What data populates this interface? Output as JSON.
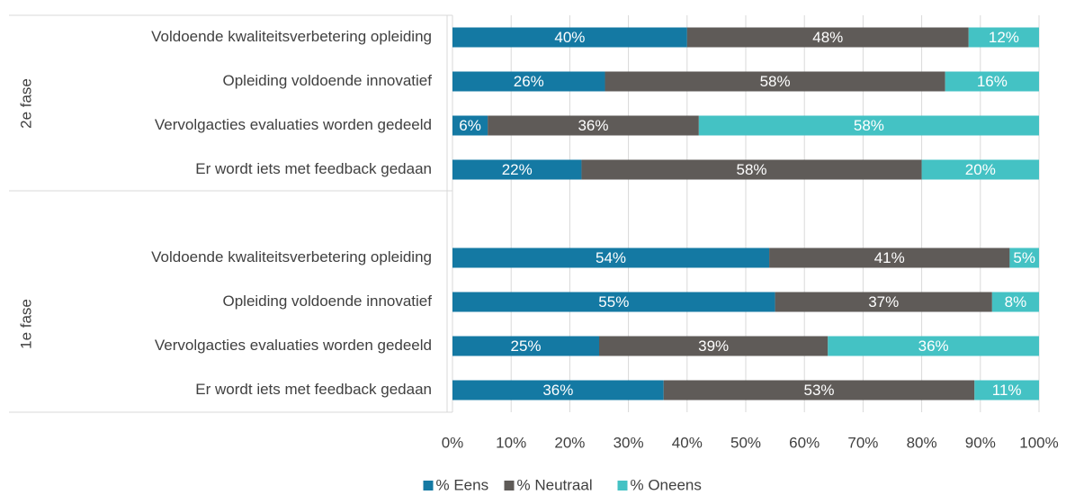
{
  "chart_data": {
    "type": "stacked_bar_horizontal",
    "groups": [
      {
        "name": "2e fase",
        "categories": [
          "Voldoende kwaliteitsverbetering opleiding",
          "Opleiding voldoende innovatief",
          "Vervolgacties evaluaties worden gedeeld",
          "Er wordt iets met feedback gedaan"
        ]
      },
      {
        "name": "1e fase",
        "categories": [
          "Voldoende kwaliteitsverbetering opleiding",
          "Opleiding voldoende innovatief",
          "Vervolgacties evaluaties worden gedeeld",
          "Er wordt iets met feedback gedaan"
        ]
      }
    ],
    "series": [
      {
        "name": "% Eens",
        "color": "#1479a3",
        "values": [
          40,
          26,
          6,
          22,
          54,
          55,
          25,
          36
        ],
        "value_labels": [
          "40%",
          "26%",
          "6%",
          "22%",
          "54%",
          "55%",
          "25%",
          "36%"
        ]
      },
      {
        "name": "% Neutraal",
        "color": "#5f5b58",
        "values": [
          48,
          58,
          36,
          58,
          41,
          37,
          39,
          53
        ],
        "value_labels": [
          "48%",
          "58%",
          "36%",
          "58%",
          "41%",
          "37%",
          "39%",
          "53%"
        ]
      },
      {
        "name": "% Oneens",
        "color": "#44c2c4",
        "values": [
          12,
          16,
          58,
          20,
          5,
          8,
          36,
          11
        ],
        "value_labels": [
          "12%",
          "16%",
          "58%",
          "20%",
          "5%",
          "8%",
          "36%",
          "11%"
        ]
      }
    ],
    "xlim": [
      0,
      100
    ],
    "xticks": [
      {
        "value": 0,
        "label": "0%"
      },
      {
        "value": 10,
        "label": "10%"
      },
      {
        "value": 20,
        "label": "20%"
      },
      {
        "value": 30,
        "label": "30%"
      },
      {
        "value": 40,
        "label": "40%"
      },
      {
        "value": 50,
        "label": "50%"
      },
      {
        "value": 60,
        "label": "60%"
      },
      {
        "value": 70,
        "label": "70%"
      },
      {
        "value": 80,
        "label": "80%"
      },
      {
        "value": 90,
        "label": "90%"
      },
      {
        "value": 100,
        "label": "100%"
      }
    ],
    "grid": true,
    "legend": "bottom"
  }
}
